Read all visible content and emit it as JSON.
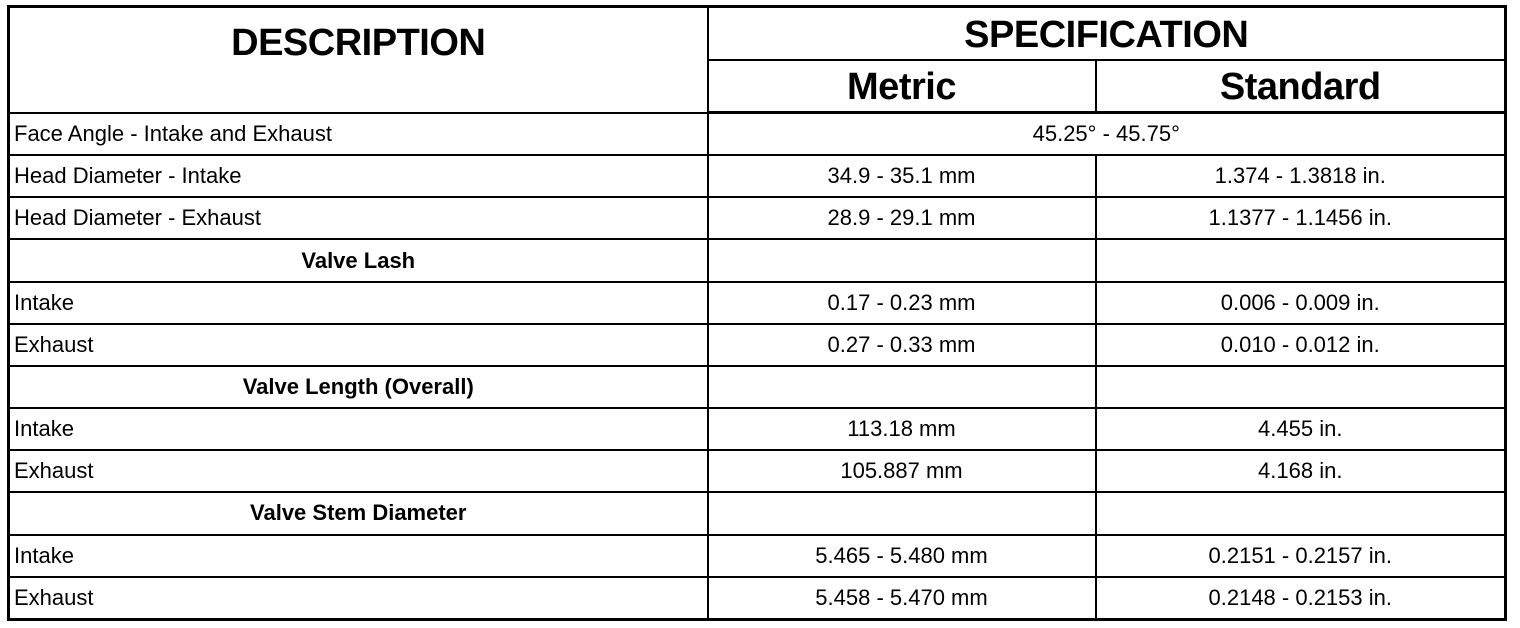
{
  "header": {
    "description": "DESCRIPTION",
    "specification": "SPECIFICATION",
    "metric": "Metric",
    "standard": "Standard"
  },
  "rows": [
    {
      "type": "merged",
      "description": "Face Angle - Intake and Exhaust",
      "value": "45.25° - 45.75°"
    },
    {
      "type": "data",
      "description": "Head Diameter - Intake",
      "metric": "34.9 - 35.1 mm",
      "standard": "1.374 - 1.3818 in."
    },
    {
      "type": "data",
      "description": "Head Diameter - Exhaust",
      "metric": "28.9 - 29.1 mm",
      "standard": "1.1377 - 1.1456 in."
    },
    {
      "type": "section",
      "description": "Valve Lash"
    },
    {
      "type": "data",
      "description": "Intake",
      "metric": "0.17 - 0.23 mm",
      "standard": "0.006 - 0.009 in."
    },
    {
      "type": "data",
      "description": "Exhaust",
      "metric": "0.27 - 0.33 mm",
      "standard": "0.010 - 0.012 in."
    },
    {
      "type": "section",
      "description": "Valve Length (Overall)"
    },
    {
      "type": "data",
      "description": "Intake",
      "metric": "113.18 mm",
      "standard": "4.455 in."
    },
    {
      "type": "data",
      "description": "Exhaust",
      "metric": "105.887 mm",
      "standard": "4.168 in."
    },
    {
      "type": "section",
      "description": "Valve Stem Diameter"
    },
    {
      "type": "data",
      "description": "Intake",
      "metric": "5.465 - 5.480 mm",
      "standard": "0.2151 - 0.2157 in."
    },
    {
      "type": "data",
      "description": "Exhaust",
      "metric": "5.458 - 5.470 mm",
      "standard": "0.2148 - 0.2153 in."
    }
  ]
}
